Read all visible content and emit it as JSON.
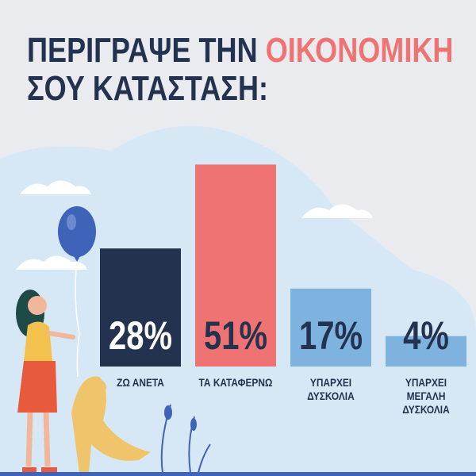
{
  "chart_data": {
    "type": "bar",
    "title": [
      "ΠΕΡΙΓΡΑΨΕ ΤΗΝ",
      "ΟΙΚΟΝΟΜΙΚΗ",
      "ΣΟΥ ΚΑΤΑΣΤΑΣΗ:"
    ],
    "categories": [
      "ΖΩ ΑΝΕΤΑ",
      "ΤΑ ΚΑΤΑΦΕΡΝΩ",
      "ΥΠΑΡΧΕΙ\nΔΥΣΚΟΛΙΑ",
      "ΥΠΑΡΧΕΙ\nΜΕΓΑΛΗ\nΔΥΣΚΟΛΙΑ"
    ],
    "values": [
      28,
      51,
      17,
      4
    ],
    "value_labels": [
      "28%",
      "51%",
      "17%",
      "4%"
    ],
    "colors": [
      "#23324f",
      "#f07373",
      "#7fb3df",
      "#7fb3df"
    ],
    "label_colors": [
      "#ffffff",
      "#23324f",
      "#23324f",
      "#23324f"
    ]
  }
}
